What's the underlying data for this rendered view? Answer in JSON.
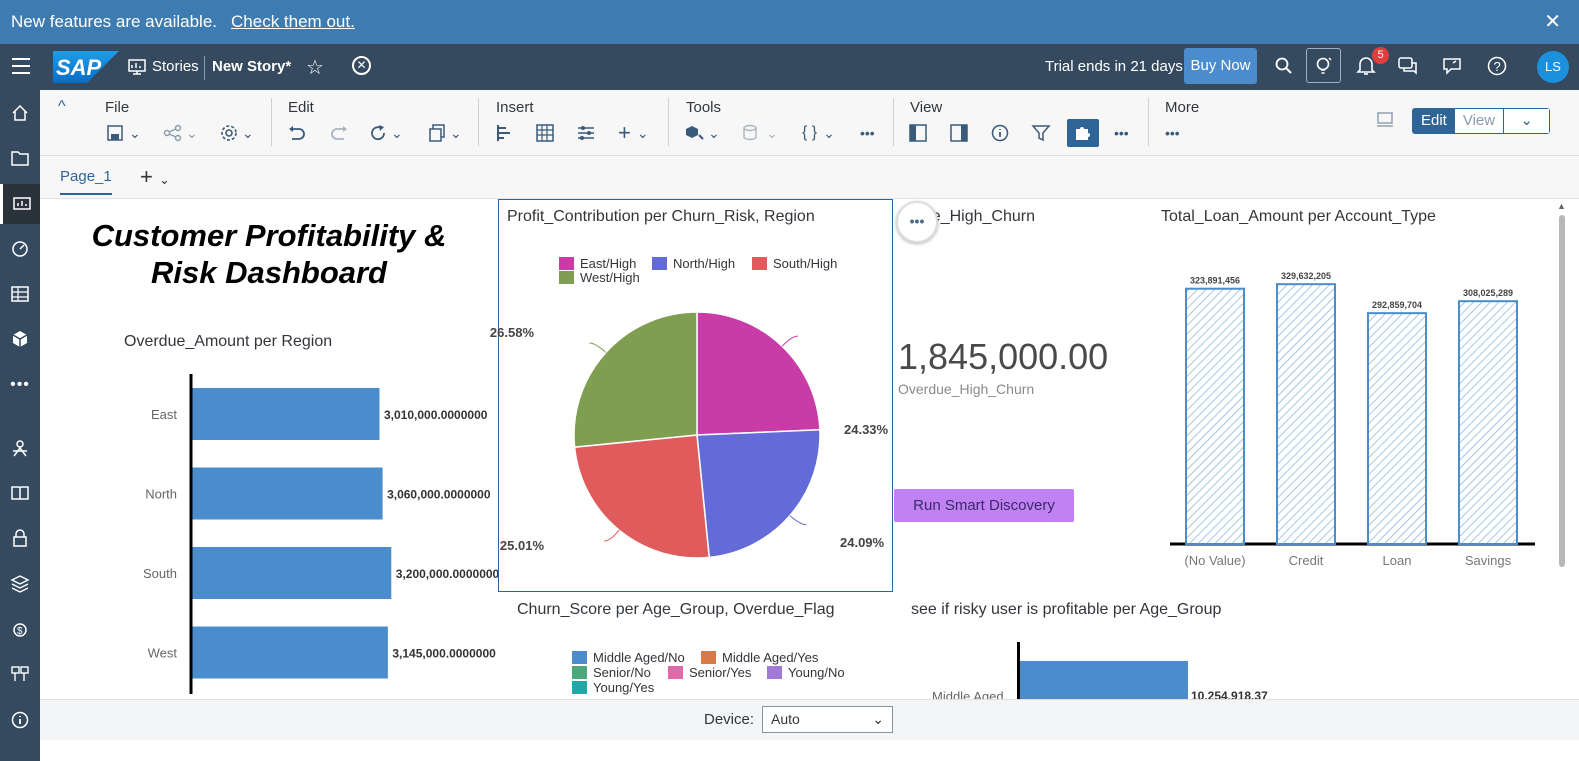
{
  "banner": {
    "message": "New features are available.",
    "link": "Check them out.",
    "close": "✕"
  },
  "shell": {
    "stories": "Stories",
    "story_name": "New Story",
    "story_dirty": "*",
    "trial": "Trial ends in 21 days",
    "buy": "Buy Now",
    "notifications_count": "5",
    "user_initials": "LS"
  },
  "toolbar": {
    "groups": [
      "File",
      "Edit",
      "Insert",
      "Tools",
      "View",
      "More"
    ],
    "edit_mode": "Edit",
    "view_mode": "View"
  },
  "page": {
    "tab": "Page_1"
  },
  "dashboard": {
    "title_line1": "Customer Profitability &",
    "title_line2": "Risk Dashboard",
    "overdue_title": "Overdue_Amount per Region",
    "profit_title": "Profit_Contribution per Churn_Risk, Region",
    "kpi_title": "due_High_Churn",
    "kpi_value": "1,845,000.00",
    "kpi_sub": "Overdue_High_Churn",
    "smart_discovery": "Run Smart Discovery",
    "loan_title": "Total_Loan_Amount per Account_Type",
    "churn_title": "Churn_Score per Age_Group, Overdue_Flag",
    "risky_title": "see if risky user is profitable per Age_Group",
    "risky_cat": "Middle Aged",
    "risky_val": "10,254,918.37",
    "churn_legend": [
      {
        "label": "Middle Aged/No",
        "color": "#4a8ccc"
      },
      {
        "label": "Middle Aged/Yes",
        "color": "#d67a4a"
      },
      {
        "label": "Senior/No",
        "color": "#4aa87a"
      },
      {
        "label": "Senior/Yes",
        "color": "#e06aa8"
      },
      {
        "label": "Young/No",
        "color": "#a07ad6"
      },
      {
        "label": "Young/Yes",
        "color": "#22a7a7"
      }
    ]
  },
  "footer": {
    "device_label": "Device:",
    "device_value": "Auto"
  },
  "chart_data": [
    {
      "type": "bar",
      "orientation": "horizontal",
      "title": "Overdue_Amount per Region",
      "categories": [
        "East",
        "North",
        "South",
        "West"
      ],
      "values": [
        3010000,
        3060000,
        3200000,
        3145000
      ],
      "value_labels": [
        "3,010,000.0000000",
        "3,060,000.0000000",
        "3,200,000.0000000",
        "3,145,000.0000000"
      ],
      "color": "#4a8ccc"
    },
    {
      "type": "pie",
      "title": "Profit_Contribution per Churn_Risk, Region",
      "categories": [
        "East/High",
        "North/High",
        "South/High",
        "West/High"
      ],
      "values": [
        24.33,
        24.09,
        25.01,
        26.58
      ],
      "labels": [
        "24.33%",
        "24.09%",
        "25.01%",
        "26.58%"
      ],
      "colors": [
        "#c93ba6",
        "#636bd9",
        "#e05c5c",
        "#7f9e52"
      ],
      "legend": "top"
    },
    {
      "type": "bar",
      "title": "Total_Loan_Amount per Account_Type",
      "categories": [
        "(No Value)",
        "Credit",
        "Loan",
        "Savings"
      ],
      "values": [
        323891456,
        329632205,
        292859704,
        308025289
      ],
      "value_labels": [
        "323,891,456",
        "329,632,205",
        "292,859,704",
        "308,025,289"
      ],
      "color": "#4a8ccc",
      "pattern": "hatched"
    }
  ]
}
